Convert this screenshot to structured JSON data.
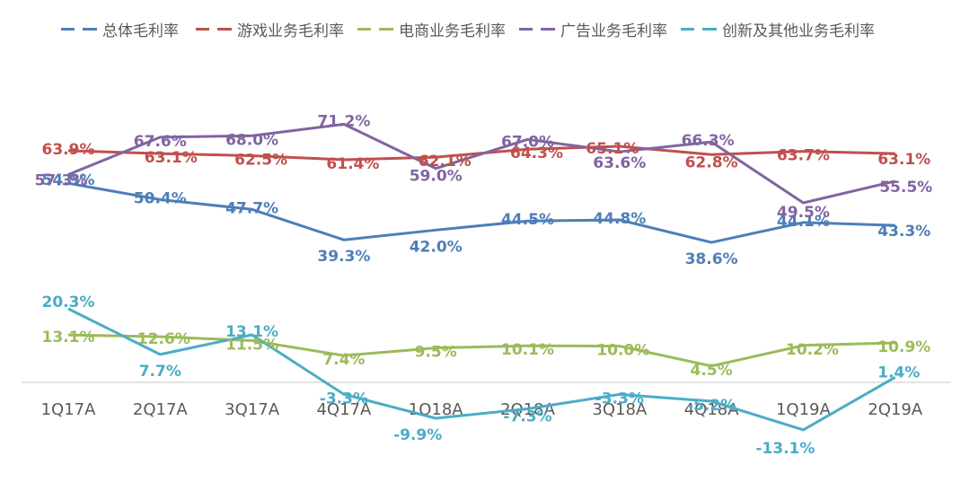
{
  "chart_data": {
    "type": "line",
    "categories": [
      "1Q17A",
      "2Q17A",
      "3Q17A",
      "4Q17A",
      "1Q18A",
      "2Q18A",
      "3Q18A",
      "4Q18A",
      "1Q19A",
      "2Q19A"
    ],
    "series": [
      {
        "name": "总体毛利率",
        "color": "#4E7EB8",
        "values": [
          54.9,
          50.4,
          47.7,
          39.3,
          42.0,
          44.5,
          44.8,
          38.6,
          44.1,
          43.3
        ],
        "labels": [
          "54.9%",
          "50.4%",
          "47.7%",
          "39.3%",
          "42.0%",
          "44.5%",
          "44.8%",
          "38.6%",
          "44.1%",
          "43.3%"
        ]
      },
      {
        "name": "游戏业务毛利率",
        "color": "#C0504D",
        "values": [
          63.9,
          63.1,
          62.5,
          61.4,
          62.1,
          64.3,
          65.1,
          62.8,
          63.7,
          63.1
        ],
        "labels": [
          "63.9%",
          "63.1%",
          "62.5%",
          "61.4%",
          "62.1%",
          "64.3%",
          "65.1%",
          "62.8%",
          "63.7%",
          "63.1%"
        ]
      },
      {
        "name": "电商业务毛利率",
        "color": "#9BBB59",
        "values": [
          13.1,
          12.6,
          11.5,
          7.4,
          9.5,
          10.1,
          10.0,
          4.5,
          10.2,
          10.9
        ],
        "labels": [
          "13.1%",
          "12.6%",
          "11.5%",
          "7.4%",
          "9.5%",
          "10.1%",
          "10.0%",
          "4.5%",
          "10.2%",
          "10.9%"
        ]
      },
      {
        "name": "广告业务毛利率",
        "color": "#8064A2",
        "values": [
          57.3,
          67.6,
          68.0,
          71.2,
          59.0,
          67.0,
          63.6,
          66.3,
          49.5,
          55.5
        ],
        "labels": [
          "57.3%",
          "67.6%",
          "68.0%",
          "71.2%",
          "59.0%",
          "67.0%",
          "63.6%",
          "66.3%",
          "49.5%",
          "55.5%"
        ]
      },
      {
        "name": "创新及其他业务毛利率",
        "color": "#4BACC6",
        "values": [
          20.3,
          7.7,
          13.1,
          -3.3,
          -9.9,
          -7.3,
          -3.3,
          -5.2,
          -13.1,
          1.4
        ],
        "labels": [
          "20.3%",
          "7.7%",
          "13.1%",
          "-3.3%",
          "-9.9%",
          "-7.3%",
          "-3.3%",
          "-5.2%",
          "-13.1%",
          "1.4%"
        ]
      }
    ],
    "ylim": [
      -20,
      80
    ],
    "grid": false,
    "legend_position": "top"
  }
}
